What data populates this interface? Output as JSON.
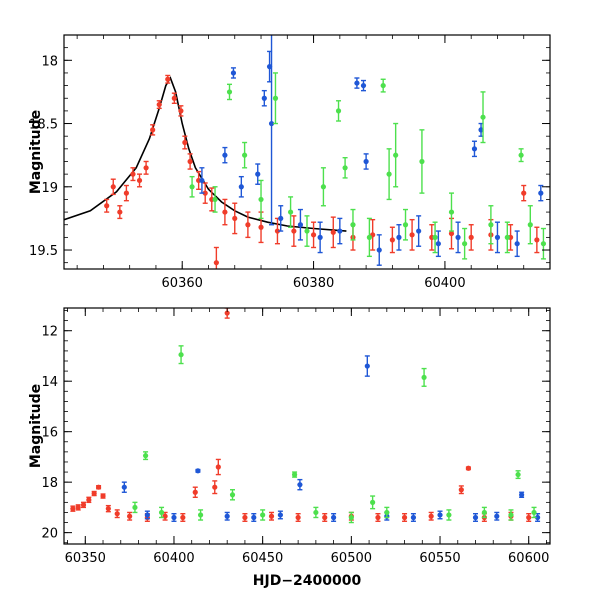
{
  "chart_data": [
    {
      "type": "scatter",
      "panel": "top",
      "xlabel": "",
      "ylabel": "Magnitude",
      "xlim": [
        60342,
        60416
      ],
      "ylim": [
        19.65,
        17.8
      ],
      "y_inverted": true,
      "grid": false,
      "x_ticks": [
        "60360",
        "60380",
        "60400"
      ],
      "y_ticks": [
        "18",
        "18.5",
        "19",
        "19.5"
      ],
      "x_tick_values": [
        60360,
        60380,
        60400
      ],
      "y_tick_values": [
        18,
        18.5,
        19,
        19.5
      ],
      "colors": {
        "red": "#f03c2a",
        "green": "#4de04d",
        "blue": "#1f57d6",
        "model": "#000000"
      },
      "model_curve": {
        "description": "black line",
        "x": [
          60342,
          60346,
          60350,
          60353,
          60355,
          60356.5,
          60357.5,
          60358.2,
          60359,
          60360,
          60361,
          60362,
          60364,
          60366,
          60368,
          60370,
          60373,
          60376,
          60380,
          60385
        ],
        "y": [
          19.26,
          19.19,
          19.04,
          18.85,
          18.62,
          18.38,
          18.2,
          18.14,
          18.25,
          18.5,
          18.7,
          18.85,
          19.02,
          19.12,
          19.19,
          19.24,
          19.28,
          19.31,
          19.33,
          19.35
        ]
      },
      "series": [
        {
          "color": "red",
          "points": [
            {
              "x": 60348.5,
              "y": 19.15,
              "err": 0.05
            },
            {
              "x": 60349.5,
              "y": 19.0,
              "err": 0.06
            },
            {
              "x": 60350.5,
              "y": 19.2,
              "err": 0.05
            },
            {
              "x": 60351.5,
              "y": 19.05,
              "err": 0.06
            },
            {
              "x": 60352.5,
              "y": 18.9,
              "err": 0.05
            },
            {
              "x": 60353.5,
              "y": 18.95,
              "err": 0.05
            },
            {
              "x": 60354.5,
              "y": 18.85,
              "err": 0.05
            },
            {
              "x": 60355.5,
              "y": 18.55,
              "err": 0.04
            },
            {
              "x": 60356.5,
              "y": 18.35,
              "err": 0.03
            },
            {
              "x": 60357.8,
              "y": 18.15,
              "err": 0.03
            },
            {
              "x": 60358.8,
              "y": 18.3,
              "err": 0.04
            },
            {
              "x": 60359.8,
              "y": 18.4,
              "err": 0.04
            },
            {
              "x": 60360.4,
              "y": 18.65,
              "err": 0.05
            },
            {
              "x": 60361.2,
              "y": 18.8,
              "err": 0.06
            },
            {
              "x": 60362.5,
              "y": 18.95,
              "err": 0.07
            },
            {
              "x": 60363.5,
              "y": 19.05,
              "err": 0.08
            },
            {
              "x": 60364.5,
              "y": 19.1,
              "err": 0.09
            },
            {
              "x": 60365.2,
              "y": 19.6,
              "err": 0.12
            },
            {
              "x": 60366.5,
              "y": 19.2,
              "err": 0.1
            },
            {
              "x": 60368.0,
              "y": 19.25,
              "err": 0.12
            },
            {
              "x": 60370.0,
              "y": 19.3,
              "err": 0.1
            },
            {
              "x": 60372.0,
              "y": 19.32,
              "err": 0.12
            },
            {
              "x": 60374.5,
              "y": 19.35,
              "err": 0.1
            },
            {
              "x": 60377.0,
              "y": 19.35,
              "err": 0.12
            },
            {
              "x": 60380.0,
              "y": 19.38,
              "err": 0.1
            },
            {
              "x": 60383.0,
              "y": 19.36,
              "err": 0.12
            },
            {
              "x": 60386.0,
              "y": 19.4,
              "err": 0.1
            },
            {
              "x": 60389.0,
              "y": 19.38,
              "err": 0.12
            },
            {
              "x": 60392.0,
              "y": 19.42,
              "err": 0.1
            },
            {
              "x": 60395.0,
              "y": 19.38,
              "err": 0.12
            },
            {
              "x": 60398.0,
              "y": 19.4,
              "err": 0.1
            },
            {
              "x": 60401.0,
              "y": 19.37,
              "err": 0.12
            },
            {
              "x": 60404.0,
              "y": 19.4,
              "err": 0.1
            },
            {
              "x": 60407.0,
              "y": 19.38,
              "err": 0.12
            },
            {
              "x": 60410.0,
              "y": 19.4,
              "err": 0.1
            },
            {
              "x": 60412.0,
              "y": 19.05,
              "err": 0.06
            },
            {
              "x": 60414.0,
              "y": 19.42,
              "err": 0.1
            }
          ]
        },
        {
          "color": "blue",
          "points": [
            {
              "x": 60363.0,
              "y": 18.95,
              "err": 0.1
            },
            {
              "x": 60366.5,
              "y": 18.75,
              "err": 0.06
            },
            {
              "x": 60367.8,
              "y": 18.1,
              "err": 0.04
            },
            {
              "x": 60369.0,
              "y": 19.0,
              "err": 0.08
            },
            {
              "x": 60371.5,
              "y": 18.9,
              "err": 0.08
            },
            {
              "x": 60372.5,
              "y": 18.3,
              "err": 0.06
            },
            {
              "x": 60373.3,
              "y": 18.05,
              "err": 0.12
            },
            {
              "x": 60373.6,
              "y": 18.5,
              "err": 0.8
            },
            {
              "x": 60375.0,
              "y": 19.25,
              "err": 0.1
            },
            {
              "x": 60378.0,
              "y": 19.3,
              "err": 0.12
            },
            {
              "x": 60381.0,
              "y": 19.4,
              "err": 0.12
            },
            {
              "x": 60384.0,
              "y": 19.35,
              "err": 0.1
            },
            {
              "x": 60386.6,
              "y": 18.18,
              "err": 0.04
            },
            {
              "x": 60387.6,
              "y": 18.2,
              "err": 0.04
            },
            {
              "x": 60388.0,
              "y": 18.8,
              "err": 0.06
            },
            {
              "x": 60390.0,
              "y": 19.5,
              "err": 0.12
            },
            {
              "x": 60393.0,
              "y": 19.4,
              "err": 0.1
            },
            {
              "x": 60396.0,
              "y": 19.35,
              "err": 0.12
            },
            {
              "x": 60399.0,
              "y": 19.45,
              "err": 0.1
            },
            {
              "x": 60402.0,
              "y": 19.4,
              "err": 0.12
            },
            {
              "x": 60404.5,
              "y": 18.7,
              "err": 0.06
            },
            {
              "x": 60405.5,
              "y": 18.55,
              "err": 0.05
            },
            {
              "x": 60408.0,
              "y": 19.4,
              "err": 0.12
            },
            {
              "x": 60411.0,
              "y": 19.45,
              "err": 0.1
            },
            {
              "x": 60414.6,
              "y": 19.05,
              "err": 0.06
            }
          ]
        },
        {
          "color": "green",
          "points": [
            {
              "x": 60361.5,
              "y": 19.0,
              "err": 0.08
            },
            {
              "x": 60365.0,
              "y": 19.1,
              "err": 0.1
            },
            {
              "x": 60367.2,
              "y": 18.25,
              "err": 0.06
            },
            {
              "x": 60369.5,
              "y": 18.75,
              "err": 0.1
            },
            {
              "x": 60372.0,
              "y": 19.1,
              "err": 0.15
            },
            {
              "x": 60374.2,
              "y": 18.3,
              "err": 0.2
            },
            {
              "x": 60376.5,
              "y": 19.2,
              "err": 0.12
            },
            {
              "x": 60379.0,
              "y": 19.35,
              "err": 0.12
            },
            {
              "x": 60381.5,
              "y": 19.0,
              "err": 0.15
            },
            {
              "x": 60383.8,
              "y": 18.4,
              "err": 0.08
            },
            {
              "x": 60384.8,
              "y": 18.85,
              "err": 0.08
            },
            {
              "x": 60386.0,
              "y": 19.3,
              "err": 0.12
            },
            {
              "x": 60388.5,
              "y": 19.4,
              "err": 0.15
            },
            {
              "x": 60390.6,
              "y": 18.2,
              "err": 0.05
            },
            {
              "x": 60391.5,
              "y": 18.9,
              "err": 0.2
            },
            {
              "x": 60392.5,
              "y": 18.75,
              "err": 0.25
            },
            {
              "x": 60394.0,
              "y": 19.3,
              "err": 0.12
            },
            {
              "x": 60396.5,
              "y": 18.8,
              "err": 0.25
            },
            {
              "x": 60398.5,
              "y": 19.4,
              "err": 0.12
            },
            {
              "x": 60401.0,
              "y": 19.2,
              "err": 0.15
            },
            {
              "x": 60403.0,
              "y": 19.45,
              "err": 0.12
            },
            {
              "x": 60405.8,
              "y": 18.45,
              "err": 0.2
            },
            {
              "x": 60407.0,
              "y": 19.3,
              "err": 0.15
            },
            {
              "x": 60409.5,
              "y": 19.4,
              "err": 0.12
            },
            {
              "x": 60411.6,
              "y": 18.75,
              "err": 0.05
            },
            {
              "x": 60413.0,
              "y": 19.3,
              "err": 0.15
            },
            {
              "x": 60415.0,
              "y": 19.45,
              "err": 0.12
            }
          ]
        }
      ]
    },
    {
      "type": "scatter",
      "panel": "bottom",
      "xlabel": "HJD−2400000",
      "ylabel": "Magnitude",
      "xlim": [
        60338,
        60612
      ],
      "ylim": [
        20.45,
        11.1
      ],
      "y_inverted": true,
      "grid": false,
      "x_ticks": [
        "60350",
        "60400",
        "60450",
        "60500",
        "60550",
        "60600"
      ],
      "y_ticks": [
        "12",
        "14",
        "16",
        "18",
        "20"
      ],
      "x_tick_values": [
        60350,
        60400,
        60450,
        60500,
        60550,
        60600
      ],
      "y_tick_values": [
        12,
        14,
        16,
        18,
        20
      ],
      "colors": {
        "red": "#f03c2a",
        "green": "#4de04d",
        "blue": "#1f57d6"
      },
      "series": [
        {
          "color": "red",
          "points": [
            {
              "x": 60343.0,
              "y": 19.05,
              "err": 0.1
            },
            {
              "x": 60346.0,
              "y": 19.0,
              "err": 0.1
            },
            {
              "x": 60349.0,
              "y": 18.9,
              "err": 0.1
            },
            {
              "x": 60352.0,
              "y": 18.7,
              "err": 0.1
            },
            {
              "x": 60355.0,
              "y": 18.45,
              "err": 0.08
            },
            {
              "x": 60357.5,
              "y": 18.2,
              "err": 0.06
            },
            {
              "x": 60360.0,
              "y": 18.55,
              "err": 0.08
            },
            {
              "x": 60363.0,
              "y": 19.05,
              "err": 0.12
            },
            {
              "x": 60368.0,
              "y": 19.25,
              "err": 0.15
            },
            {
              "x": 60375.0,
              "y": 19.35,
              "err": 0.15
            },
            {
              "x": 60385.0,
              "y": 19.4,
              "err": 0.15
            },
            {
              "x": 60395.0,
              "y": 19.35,
              "err": 0.15
            },
            {
              "x": 60405.0,
              "y": 19.4,
              "err": 0.15
            },
            {
              "x": 60412.0,
              "y": 18.4,
              "err": 0.2
            },
            {
              "x": 60423.0,
              "y": 18.2,
              "err": 0.25
            },
            {
              "x": 60425.0,
              "y": 17.4,
              "err": 0.3
            },
            {
              "x": 60430.0,
              "y": 11.3,
              "err": 0.2
            },
            {
              "x": 60440.0,
              "y": 19.4,
              "err": 0.15
            },
            {
              "x": 60455.0,
              "y": 19.35,
              "err": 0.15
            },
            {
              "x": 60470.0,
              "y": 19.4,
              "err": 0.15
            },
            {
              "x": 60485.0,
              "y": 19.4,
              "err": 0.15
            },
            {
              "x": 60500.0,
              "y": 19.35,
              "err": 0.15
            },
            {
              "x": 60515.0,
              "y": 19.4,
              "err": 0.15
            },
            {
              "x": 60530.0,
              "y": 19.4,
              "err": 0.15
            },
            {
              "x": 60545.0,
              "y": 19.35,
              "err": 0.15
            },
            {
              "x": 60562.0,
              "y": 18.3,
              "err": 0.15
            },
            {
              "x": 60566.0,
              "y": 17.45,
              "err": 0.05
            },
            {
              "x": 60575.0,
              "y": 19.4,
              "err": 0.15
            },
            {
              "x": 60590.0,
              "y": 19.35,
              "err": 0.15
            },
            {
              "x": 60600.0,
              "y": 19.4,
              "err": 0.15
            }
          ]
        },
        {
          "color": "blue",
          "points": [
            {
              "x": 60372.0,
              "y": 18.2,
              "err": 0.2
            },
            {
              "x": 60385.0,
              "y": 19.3,
              "err": 0.15
            },
            {
              "x": 60400.0,
              "y": 19.4,
              "err": 0.15
            },
            {
              "x": 60413.5,
              "y": 17.55,
              "err": 0.05
            },
            {
              "x": 60430.0,
              "y": 19.35,
              "err": 0.15
            },
            {
              "x": 60445.0,
              "y": 19.4,
              "err": 0.15
            },
            {
              "x": 60460.0,
              "y": 19.3,
              "err": 0.15
            },
            {
              "x": 60471.0,
              "y": 18.1,
              "err": 0.2
            },
            {
              "x": 60490.0,
              "y": 19.4,
              "err": 0.15
            },
            {
              "x": 60509.0,
              "y": 13.4,
              "err": 0.4
            },
            {
              "x": 60520.0,
              "y": 19.35,
              "err": 0.15
            },
            {
              "x": 60535.0,
              "y": 19.4,
              "err": 0.15
            },
            {
              "x": 60550.0,
              "y": 19.3,
              "err": 0.15
            },
            {
              "x": 60570.0,
              "y": 19.4,
              "err": 0.15
            },
            {
              "x": 60582.0,
              "y": 19.35,
              "err": 0.15
            },
            {
              "x": 60596.0,
              "y": 18.5,
              "err": 0.1
            },
            {
              "x": 60605.0,
              "y": 19.4,
              "err": 0.15
            }
          ]
        },
        {
          "color": "green",
          "points": [
            {
              "x": 60378.0,
              "y": 19.0,
              "err": 0.2
            },
            {
              "x": 60384.0,
              "y": 16.95,
              "err": 0.15
            },
            {
              "x": 60393.0,
              "y": 19.2,
              "err": 0.2
            },
            {
              "x": 60404.0,
              "y": 12.95,
              "err": 0.35
            },
            {
              "x": 60415.0,
              "y": 19.3,
              "err": 0.2
            },
            {
              "x": 60433.0,
              "y": 18.5,
              "err": 0.2
            },
            {
              "x": 60450.0,
              "y": 19.3,
              "err": 0.2
            },
            {
              "x": 60468.0,
              "y": 17.7,
              "err": 0.1
            },
            {
              "x": 60480.0,
              "y": 19.2,
              "err": 0.2
            },
            {
              "x": 60500.0,
              "y": 19.4,
              "err": 0.2
            },
            {
              "x": 60512.0,
              "y": 18.8,
              "err": 0.25
            },
            {
              "x": 60520.0,
              "y": 19.2,
              "err": 0.2
            },
            {
              "x": 60541.0,
              "y": 13.85,
              "err": 0.35
            },
            {
              "x": 60555.0,
              "y": 19.3,
              "err": 0.2
            },
            {
              "x": 60575.0,
              "y": 19.2,
              "err": 0.2
            },
            {
              "x": 60590.0,
              "y": 19.3,
              "err": 0.2
            },
            {
              "x": 60594.0,
              "y": 17.7,
              "err": 0.15
            },
            {
              "x": 60603.0,
              "y": 19.2,
              "err": 0.2
            }
          ]
        }
      ]
    }
  ]
}
